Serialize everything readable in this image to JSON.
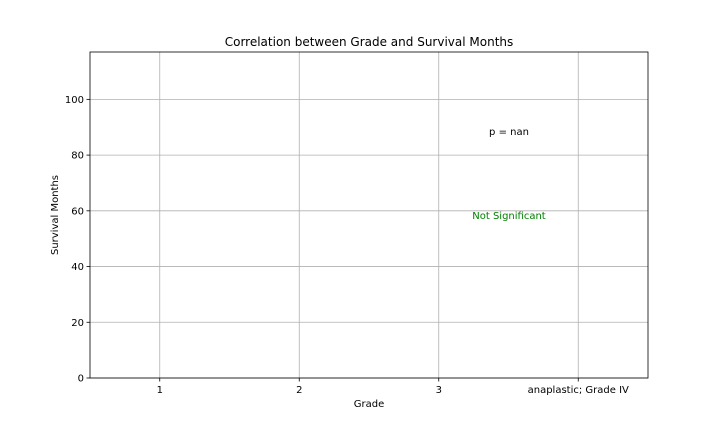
{
  "chart_data": {
    "type": "box",
    "title": "Correlation between Grade and Survival Months",
    "xlabel": "Grade",
    "ylabel": "Survival Months",
    "categories": [
      "1",
      "2",
      "3",
      "anaplastic; Grade IV"
    ],
    "values": [],
    "ylim": [
      0,
      117
    ],
    "yticks": [
      "0",
      "20",
      "40",
      "60",
      "80",
      "100"
    ],
    "grid": true,
    "annotations": [
      {
        "text": "p = nan",
        "color": "#000000"
      },
      {
        "text": "Not Significant",
        "color": "#008000"
      }
    ]
  }
}
